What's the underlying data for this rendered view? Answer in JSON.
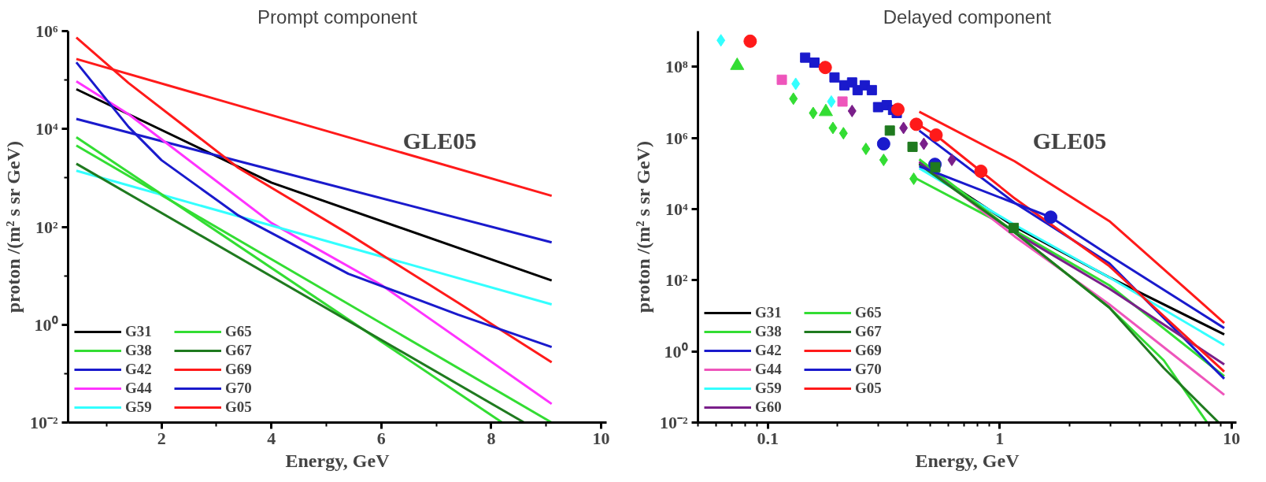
{
  "chart_data": [
    {
      "type": "line",
      "title": "Prompt component",
      "xlabel": "Energy, GeV",
      "ylabel": "proton /(m² s sr GeV)",
      "log": "y",
      "legend": "bottom left",
      "xlim": [
        0.3,
        10.1
      ],
      "ylim": [
        0.01,
        1000000
      ],
      "xticks": [
        {
          "value": 1,
          "label": null
        },
        2,
        {
          "value": 3,
          "label": null
        },
        4,
        {
          "value": 5,
          "label": null
        },
        6,
        {
          "value": 7,
          "label": null
        },
        8,
        {
          "value": 9,
          "label": null
        },
        10
      ],
      "yticks": [
        {
          "value": 0.01,
          "label": "10⁻²"
        },
        {
          "value": 0.1,
          "label": null
        },
        {
          "value": 1,
          "label": "10⁰"
        },
        {
          "value": 10,
          "label": null
        },
        {
          "value": 100,
          "label": "10²"
        },
        {
          "value": 1000,
          "label": null
        },
        {
          "value": 10000,
          "label": "10⁴"
        },
        {
          "value": 100000,
          "label": null
        },
        {
          "value": 1000000,
          "label": "10⁶"
        }
      ],
      "annotations": [
        "GLE05"
      ],
      "series": [
        {
          "name": "G31",
          "color": "#000000",
          "x": [
            0.45,
            4,
            9.1
          ],
          "values": [
            65000,
            800,
            8
          ]
        },
        {
          "name": "G38",
          "color": "#33dd33",
          "x": [
            0.45,
            9.1
          ],
          "values": [
            4600,
            0.01
          ]
        },
        {
          "name": "G42",
          "color": "#1a1acc",
          "x": [
            0.45,
            9.1
          ],
          "values": [
            16000,
            48
          ]
        },
        {
          "name": "G44",
          "color": "#ff33ff",
          "x": [
            0.45,
            1.4,
            4,
            6,
            9.1
          ],
          "values": [
            94000,
            20000,
            120,
            6.5,
            0.024
          ]
        },
        {
          "name": "G59",
          "color": "#33ffff",
          "x": [
            0.45,
            9.1
          ],
          "values": [
            1400,
            2.6
          ]
        },
        {
          "name": "G65",
          "color": "#33dd33",
          "x": [
            0.45,
            8.2
          ],
          "values": [
            6800,
            0.01
          ]
        },
        {
          "name": "G67",
          "color": "#1f7a1f",
          "x": [
            0.45,
            8.6
          ],
          "values": [
            1950,
            0.01
          ]
        },
        {
          "name": "G69",
          "color": "#ff1a1a",
          "x": [
            0.45,
            1.4,
            3.4,
            5.4,
            7.4,
            9.1
          ],
          "values": [
            740000,
            87000,
            1600,
            72,
            2.8,
            0.17
          ]
        },
        {
          "name": "G70",
          "color": "#1a1acc",
          "x": [
            0.45,
            1.4,
            2,
            3.4,
            5.4,
            7.4,
            9.1
          ],
          "values": [
            230000,
            11000,
            2300,
            170,
            11,
            1.6,
            0.35
          ]
        },
        {
          "name": "G05",
          "color": "#ff1a1a",
          "x": [
            0.45,
            9.1
          ],
          "values": [
            270000,
            430
          ]
        }
      ]
    },
    {
      "type": "line",
      "title": "Delayed component",
      "xlabel": "Energy, GeV",
      "ylabel": "proton /(m² s sr GeV)",
      "log": "xy",
      "legend": "bottom left",
      "xlim": [
        0.05,
        10.5
      ],
      "ylim": [
        0.01,
        1000000000
      ],
      "xticks": [
        {
          "value": 0.05,
          "label": null
        },
        {
          "value": 0.06,
          "label": null
        },
        {
          "value": 0.07,
          "label": null
        },
        {
          "value": 0.08,
          "label": null
        },
        {
          "value": 0.09,
          "label": null
        },
        0.1,
        {
          "value": 0.2,
          "label": null
        },
        {
          "value": 0.3,
          "label": null
        },
        {
          "value": 0.4,
          "label": null
        },
        {
          "value": 0.5,
          "label": null
        },
        {
          "value": 0.6,
          "label": null
        },
        {
          "value": 0.7,
          "label": null
        },
        {
          "value": 0.8,
          "label": null
        },
        {
          "value": 0.9,
          "label": null
        },
        1,
        {
          "value": 2,
          "label": null
        },
        {
          "value": 3,
          "label": null
        },
        {
          "value": 4,
          "label": null
        },
        {
          "value": 5,
          "label": null
        },
        {
          "value": 6,
          "label": null
        },
        {
          "value": 7,
          "label": null
        },
        {
          "value": 8,
          "label": null
        },
        {
          "value": 9,
          "label": null
        },
        10
      ],
      "yticks": [
        {
          "value": 0.01,
          "label": "10⁻²"
        },
        {
          "value": 1,
          "label": "10⁰"
        },
        {
          "value": 100,
          "label": "10²"
        },
        {
          "value": 10000,
          "label": "10⁴"
        },
        {
          "value": 1000000,
          "label": "10⁶"
        },
        {
          "value": 100000000,
          "label": "10⁸"
        }
      ],
      "annotations": [
        "GLE05"
      ],
      "series": [
        {
          "name": "G31",
          "color": "#000000",
          "x": [
            0.45,
            1.16,
            2.97,
            9.3
          ],
          "values": [
            190000,
            3200,
            120,
            3
          ]
        },
        {
          "name": "G38",
          "color": "#33dd33",
          "x": [
            0.44,
            1.16,
            2.97,
            9.3
          ],
          "values": [
            70000,
            2500,
            72,
            0.2
          ]
        },
        {
          "name": "G42",
          "color": "#1a1acc",
          "x": [
            0.45,
            1.16,
            2.97,
            9.3
          ],
          "values": [
            1600000,
            15000,
            300,
            0.17
          ]
        },
        {
          "name": "G44",
          "color": "#ee55bb",
          "x": [
            0.45,
            1.16,
            2.97,
            9.3
          ],
          "values": [
            220000,
            1700,
            21,
            0.06
          ]
        },
        {
          "name": "G59",
          "color": "#33ffff",
          "x": [
            0.45,
            1.16,
            2.97,
            9.3
          ],
          "values": [
            140000,
            3600,
            120,
            1.5
          ]
        },
        {
          "name": "G60",
          "color": "#7a1f8a",
          "x": [
            0.45,
            1.16,
            2.97,
            9.3
          ],
          "values": [
            210000,
            2200,
            58,
            0.43
          ]
        },
        {
          "name": "G65",
          "color": "#33dd33",
          "x": [
            0.45,
            1.16,
            2.97,
            5.1,
            7.85
          ],
          "values": [
            250000,
            2200,
            17,
            0.56,
            0.01
          ]
        },
        {
          "name": "G67",
          "color": "#1f7a1f",
          "x": [
            0.45,
            1.16,
            2.97,
            5.1,
            8.8
          ],
          "values": [
            180000,
            2200,
            17,
            0.34,
            0.01
          ]
        },
        {
          "name": "G69",
          "color": "#ff1a1a",
          "x": [
            0.44,
            0.53,
            0.83,
            1.16,
            2.97,
            9.3
          ],
          "values": [
            2500000,
            1200000,
            115000,
            20000,
            250,
            0.27
          ]
        },
        {
          "name": "G70",
          "color": "#1a1acc",
          "x": [
            0.45,
            1.66,
            2.97,
            9.3
          ],
          "values": [
            160000,
            5900,
            500,
            4.5
          ]
        },
        {
          "name": "G05",
          "color": "#ff1a1a",
          "x": [
            0.45,
            1.16,
            2.97,
            9.3
          ],
          "values": [
            5400000,
            220000,
            4600,
            6.3
          ]
        },
        {
          "type": "scatter",
          "marker": "diamond",
          "color": "#33ffff",
          "x": [
            0.0628,
            0.132,
            0.188
          ],
          "values": [
            550000000,
            33000000,
            10500000
          ]
        },
        {
          "type": "scatter",
          "marker": "circle",
          "color": "#1a1acc",
          "x": [
            0.316,
            0.526,
            1.66
          ],
          "values": [
            680000,
            180000,
            5900
          ]
        },
        {
          "type": "scatter",
          "marker": "square",
          "color": "#1a1acc",
          "x": [
            0.145,
            0.159,
            0.194,
            0.214,
            0.231,
            0.244,
            0.262,
            0.281,
            0.299,
            0.326,
            0.347,
            0.36
          ],
          "values": [
            180000000,
            130000000,
            50000000,
            30000000,
            36000000,
            22000000,
            30000000,
            22000000,
            7300000,
            8300000,
            6100000,
            5000000
          ]
        },
        {
          "type": "scatter",
          "marker": "circle",
          "color": "#ff1a1a",
          "x": [
            0.084,
            0.177,
            0.364,
            0.437,
            0.532,
            0.83
          ],
          "values": [
            520000000,
            95000000,
            6300000,
            2400000,
            1200000,
            115000
          ]
        },
        {
          "type": "scatter",
          "marker": "triangle",
          "color": "#33dd33",
          "x": [
            0.0738,
            0.178
          ],
          "values": [
            107000000,
            5400000
          ]
        },
        {
          "type": "scatter",
          "marker": "square",
          "color": "#ee55bb",
          "x": [
            0.115,
            0.21
          ],
          "values": [
            43000000,
            10500000
          ]
        },
        {
          "type": "scatter",
          "marker": "diamond",
          "color": "#33dd33",
          "x": [
            0.129,
            0.157,
            0.191,
            0.212,
            0.265,
            0.316,
            0.426
          ],
          "values": [
            12600000,
            5000000,
            1900000,
            1350000,
            490000,
            240000,
            71000
          ]
        },
        {
          "type": "scatter",
          "marker": "diamond",
          "color": "#7a1f8a",
          "x": [
            0.231,
            0.385,
            0.471,
            0.622
          ],
          "values": [
            5700000,
            1900000,
            680000,
            240000
          ]
        },
        {
          "type": "scatter",
          "marker": "square",
          "color": "#1f7a1f",
          "x": [
            0.336,
            0.421,
            0.528,
            1.15
          ],
          "values": [
            1600000,
            560000,
            150000,
            2950
          ]
        }
      ]
    }
  ]
}
